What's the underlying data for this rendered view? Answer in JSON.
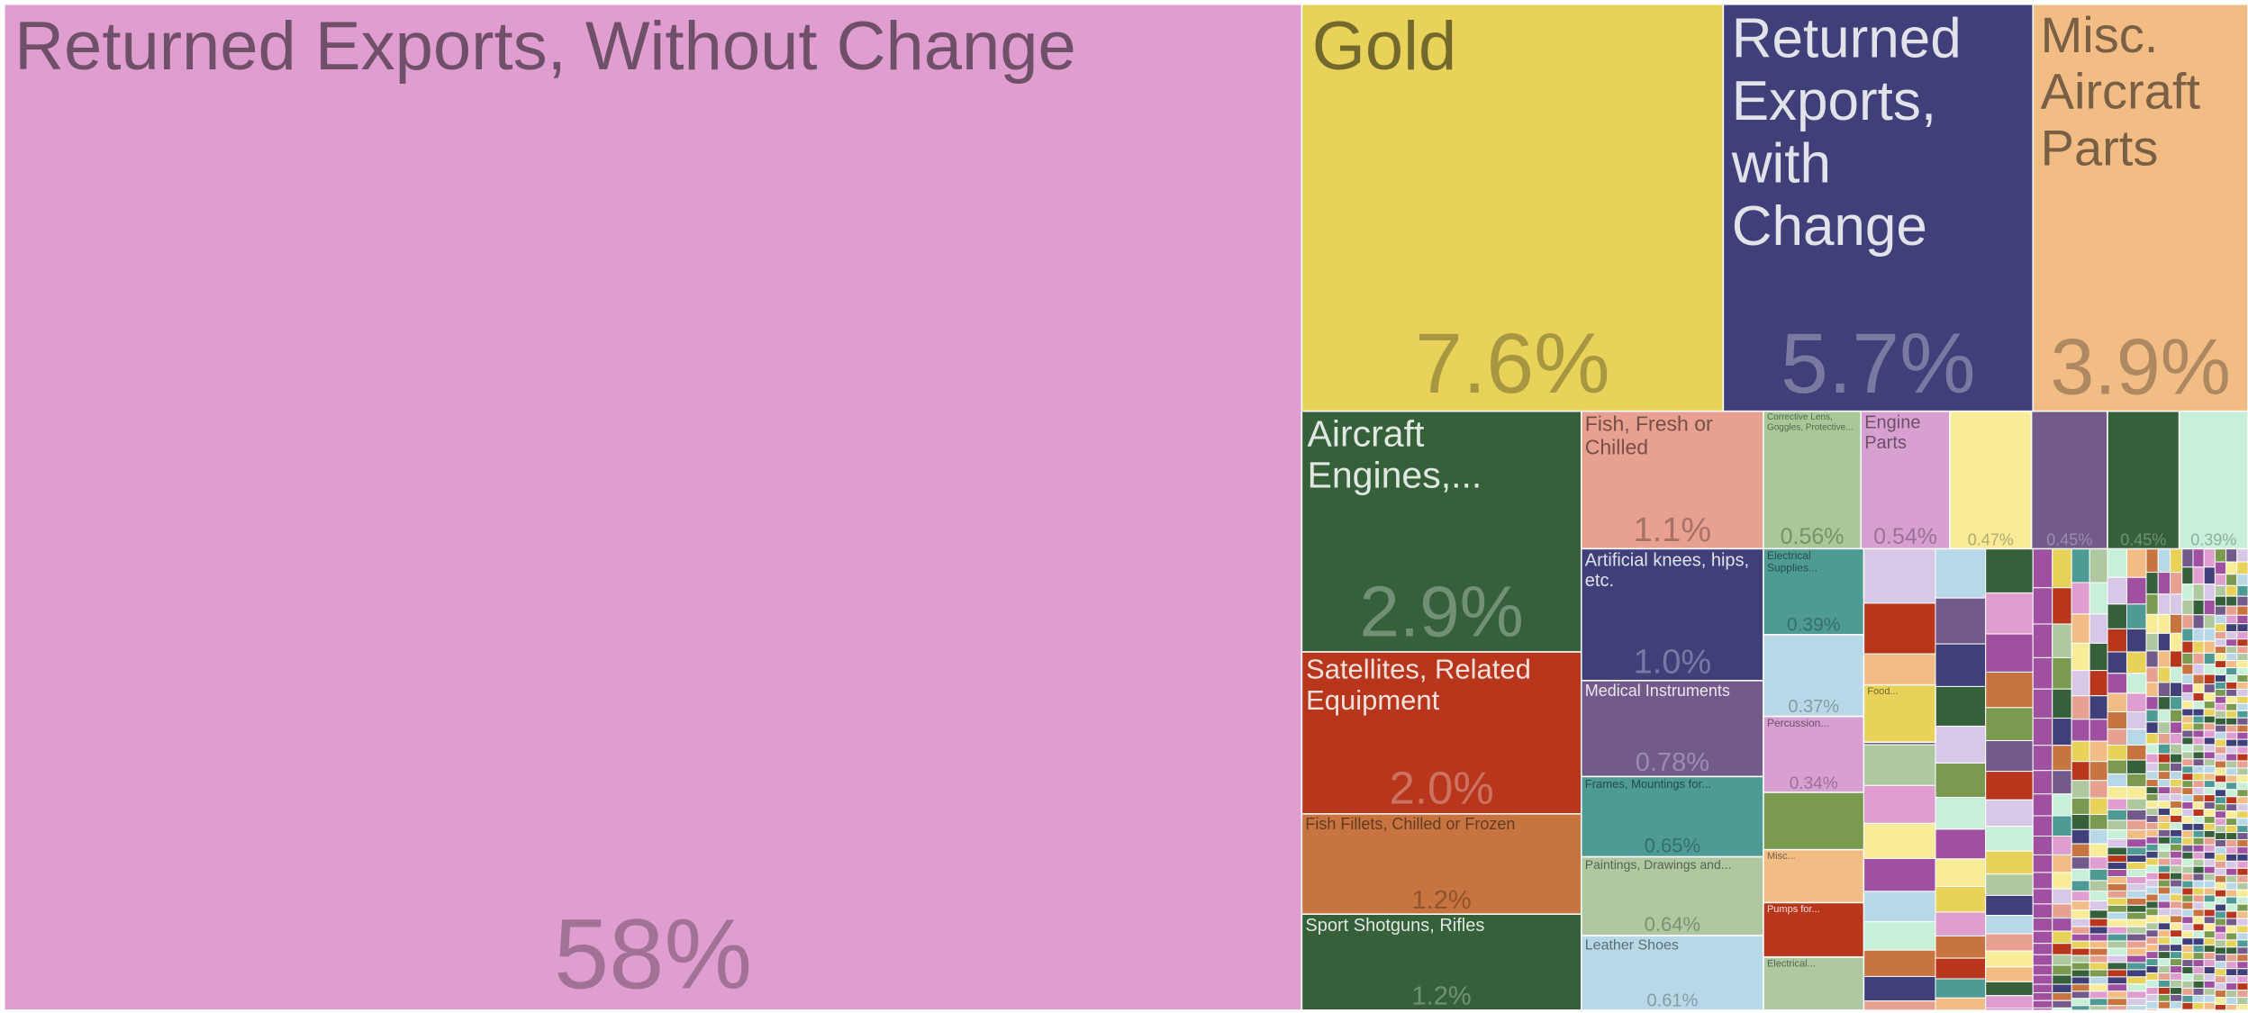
{
  "chart_data": {
    "type": "treemap",
    "categories": [
      "Returned Exports, Without Change",
      "Gold",
      "Returned Exports, with Change",
      "Misc. Aircraft Parts",
      "Aircraft Engines,...",
      "Satellites, Related Equipment",
      "Fish Fillets, Chilled or Frozen",
      "Sport Shotguns, Rifles",
      "Fish, Fresh or Chilled",
      "Artificial knees, hips, etc.",
      "Medical Instruments",
      "Frames, Mountings for...",
      "Paintings, Drawings and...",
      "Leather Shoes",
      "Corrective Lens, Goggles, Protective...",
      "Engine Parts",
      null,
      null,
      null,
      null,
      "Electrical Supplies...",
      null,
      "Percussion...",
      "Food...",
      "Misc...",
      "Pumps for...",
      "Electrical..."
    ],
    "values": [
      58,
      7.6,
      5.7,
      3.9,
      2.9,
      2.0,
      1.2,
      1.2,
      1.1,
      1.0,
      0.78,
      0.65,
      0.64,
      0.61,
      0.56,
      0.54,
      0.47,
      0.45,
      0.45,
      0.39,
      0.39,
      0.37,
      0.34,
      null,
      null,
      null,
      null
    ],
    "value_labels": [
      "58%",
      "7.6%",
      "5.7%",
      "3.9%",
      "2.9%",
      "2.0%",
      "1.2%",
      "1.2%",
      "1.1%",
      "1.0%",
      "0.78%",
      "0.65%",
      "0.64%",
      "0.61%",
      "0.56%",
      "0.54%",
      "0.47%",
      "0.45%",
      "0.45%",
      "0.39%",
      "0.39%",
      "0.37%",
      "0.34%",
      null,
      null,
      null,
      null
    ],
    "colors": [
      "#e09ed0",
      "#e8d25a",
      "#3f3f7a",
      "#f2bd85",
      "#35603a",
      "#b8361c",
      "#c87440",
      "#35603a",
      "#e8a090",
      "#3f3f7a",
      "#725a8a",
      "#4e9a95",
      "#b0c8a0",
      "#b8d8e8",
      "#a8c898",
      "#d8a0d0",
      "#f8ec98",
      "#725a8a",
      "#35603a",
      "#c8f0d8",
      "#4e9a95",
      "#b8d8e8",
      "#d8a0d0",
      "#e8d25a",
      "#f2bd85",
      "#b8361c",
      "#b0c8a0"
    ]
  }
}
